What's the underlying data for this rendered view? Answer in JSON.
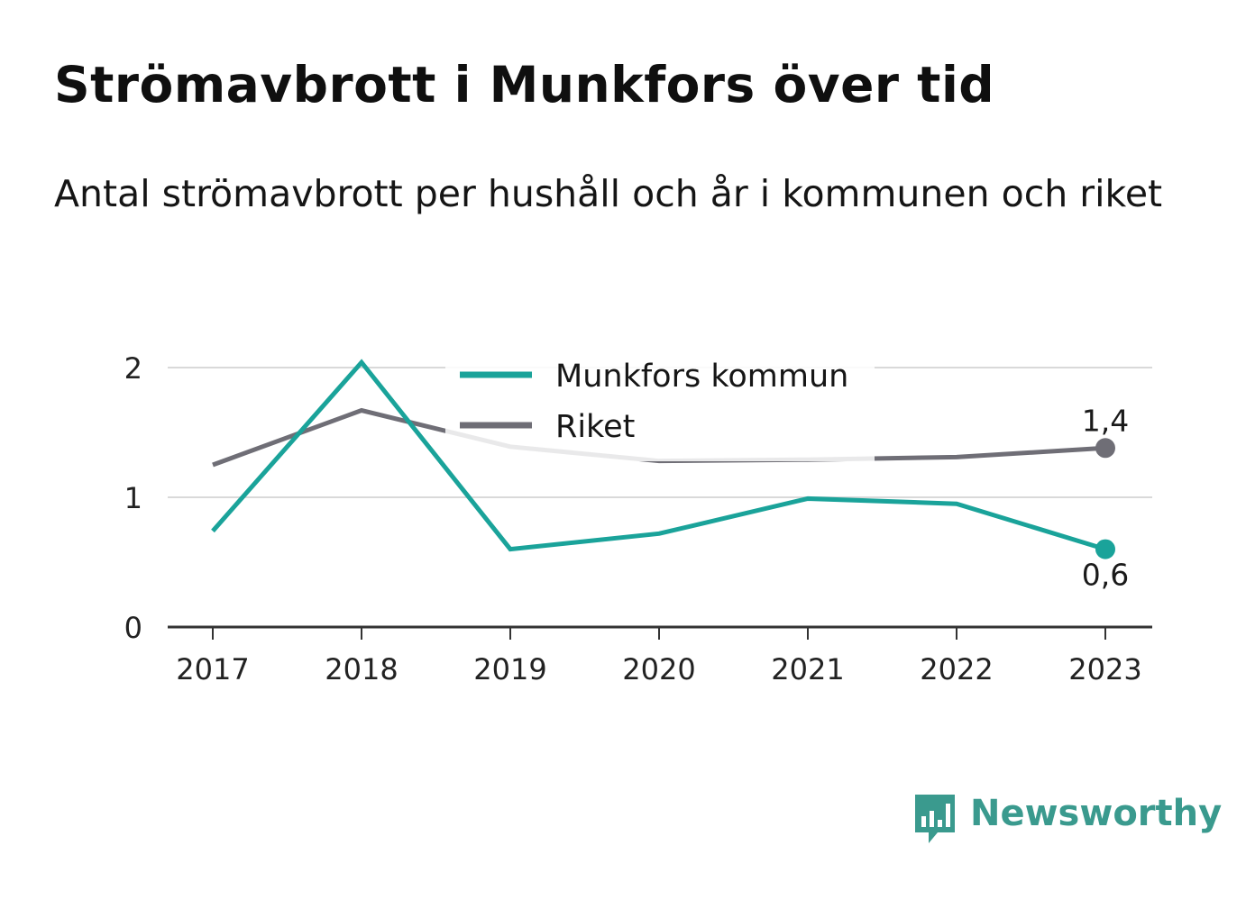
{
  "title": "Strömavbrott i Munkfors över tid",
  "subtitle": "Antal strömavbrott per hushåll och år i kommunen och riket",
  "brand": {
    "name": "Newsworthy",
    "color": "#3a9a8e",
    "icon": "bar-chart-speech-bubble-icon"
  },
  "chart_data": {
    "type": "line",
    "x": [
      "2017",
      "2018",
      "2019",
      "2020",
      "2021",
      "2022",
      "2023"
    ],
    "ylim": [
      0,
      2
    ],
    "yticks": [
      "0",
      "1",
      "2"
    ],
    "grid": true,
    "legend": "top-center",
    "series": [
      {
        "name": "Munkfors kommun",
        "color": "#1aa39a",
        "values": [
          0.74,
          2.04,
          0.6,
          0.72,
          0.99,
          0.95,
          0.6
        ],
        "end_label": "0,6"
      },
      {
        "name": "Riket",
        "color": "#6f6e76",
        "values": [
          1.25,
          1.67,
          1.39,
          1.28,
          1.29,
          1.31,
          1.38
        ],
        "end_label": "1,4"
      }
    ]
  }
}
